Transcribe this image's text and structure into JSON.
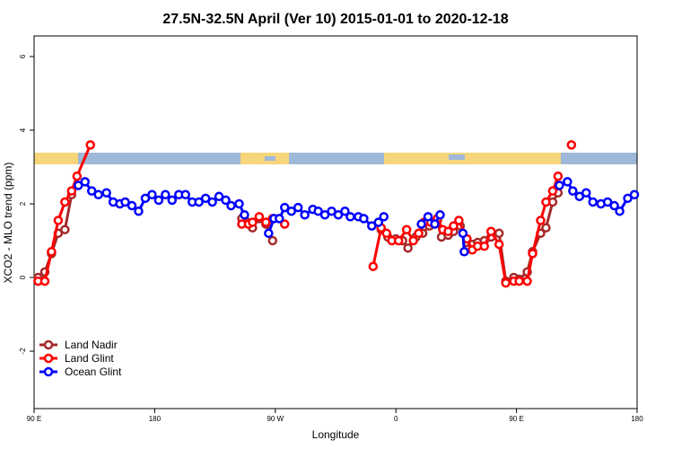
{
  "chart_data": {
    "type": "line",
    "title": "27.5N-32.5N April (Ver 10)   2015-01-01 to 2020-12-18",
    "xlabel": "Longitude",
    "ylabel": "XCO2 - MLO trend (ppm)",
    "xlim": [
      90,
      540
    ],
    "xticks": [
      {
        "value": 90,
        "label": "90 E"
      },
      180,
      {
        "value": 270,
        "label": "90 W"
      },
      {
        "value": 360,
        "label": "0"
      },
      {
        "value": 450,
        "label": "90 E"
      },
      {
        "value": 540,
        "label": "180"
      }
    ],
    "ylim": [
      -3.56,
      6.56
    ],
    "yticks": [
      -2,
      0,
      2,
      4,
      6
    ],
    "legend": "bottom-left",
    "series": [
      {
        "name": "Land Nadir",
        "color": "#a52a2a",
        "x": [
          93,
          98,
          103,
          108,
          113,
          118,
          null,
          245,
          249,
          253,
          258,
          263,
          268,
          null,
          349,
          354,
          360,
          365,
          369,
          375,
          380,
          385,
          391,
          394,
          399,
          403,
          408,
          413,
          417,
          421,
          426,
          431,
          437,
          442,
          448,
          452,
          458,
          462,
          468,
          472,
          477,
          481
        ],
        "values": [
          0.0,
          0.15,
          0.65,
          1.2,
          1.3,
          2.25,
          null,
          1.6,
          1.5,
          1.35,
          1.6,
          1.45,
          1.0,
          null,
          1.3,
          1.1,
          1.05,
          1.0,
          0.8,
          1.1,
          1.2,
          1.4,
          1.55,
          1.1,
          1.15,
          1.25,
          1.4,
          0.95,
          0.9,
          0.95,
          1.0,
          1.1,
          1.2,
          -0.1,
          0.0,
          -0.05,
          0.15,
          0.7,
          1.2,
          1.35,
          2.05,
          2.3
        ]
      },
      {
        "name": "Land Glint",
        "color": "#ff0000",
        "x": [
          93,
          98,
          103,
          108,
          113,
          118,
          122,
          132,
          null,
          245,
          250,
          253,
          258,
          263,
          268,
          277,
          null,
          343,
          349,
          353,
          357,
          362,
          368,
          373,
          377,
          381,
          386,
          391,
          395,
          399,
          403,
          407,
          413,
          417,
          421,
          426,
          431,
          437,
          442,
          448,
          452,
          458,
          462,
          468,
          472,
          477,
          481,
          null,
          491
        ],
        "values": [
          -0.1,
          -0.1,
          0.7,
          1.55,
          2.05,
          2.35,
          2.75,
          3.6,
          null,
          1.45,
          1.45,
          1.5,
          1.65,
          1.5,
          1.6,
          1.45,
          null,
          0.3,
          1.35,
          1.2,
          1.0,
          1.0,
          1.3,
          1.0,
          1.2,
          1.5,
          1.5,
          1.6,
          1.3,
          1.25,
          1.4,
          1.55,
          1.05,
          0.75,
          0.85,
          0.85,
          1.25,
          0.9,
          -0.15,
          -0.1,
          -0.1,
          -0.1,
          0.65,
          1.55,
          2.05,
          2.35,
          2.75,
          null,
          3.6
        ]
      },
      {
        "name": "Ocean Glint",
        "color": "#0000ff",
        "x": [
          123,
          128,
          133,
          138,
          144,
          149,
          154,
          158,
          163,
          168,
          173,
          178,
          183,
          188,
          193,
          198,
          203,
          208,
          213,
          218,
          223,
          228,
          233,
          237,
          243,
          247,
          null,
          265,
          269,
          273,
          277,
          282,
          287,
          292,
          298,
          302,
          307,
          312,
          317,
          322,
          326,
          332,
          336,
          342,
          347,
          351,
          null,
          379,
          384,
          389,
          393,
          null,
          410,
          411,
          null,
          482,
          488,
          492,
          497,
          502,
          507,
          513,
          518,
          523,
          527,
          533,
          538
        ],
        "values": [
          2.5,
          2.6,
          2.35,
          2.25,
          2.3,
          2.05,
          2.0,
          2.05,
          1.95,
          1.8,
          2.15,
          2.25,
          2.1,
          2.25,
          2.1,
          2.25,
          2.25,
          2.05,
          2.05,
          2.15,
          2.05,
          2.2,
          2.1,
          1.95,
          2.0,
          1.7,
          null,
          1.2,
          1.6,
          1.6,
          1.9,
          1.8,
          1.9,
          1.7,
          1.85,
          1.8,
          1.7,
          1.8,
          1.7,
          1.8,
          1.65,
          1.65,
          1.6,
          1.4,
          1.5,
          1.65,
          null,
          1.45,
          1.65,
          1.45,
          1.7,
          null,
          1.2,
          0.7,
          null,
          2.5,
          2.6,
          2.35,
          2.2,
          2.3,
          2.05,
          2.0,
          2.05,
          1.95,
          1.8,
          2.15,
          2.25
        ]
      }
    ]
  }
}
